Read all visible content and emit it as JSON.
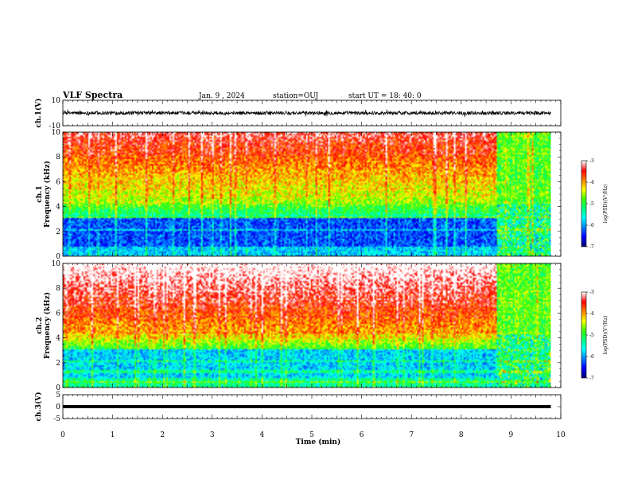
{
  "header": {
    "title": "VLF Spectra",
    "date": "Jan. 9 , 2024",
    "station": "station=OUJ",
    "start": "start UT = 18: 40: 0"
  },
  "colors": {
    "spectrogram_scale": [
      "#00007a",
      "#0000ff",
      "#0080ff",
      "#00ffff",
      "#00ff80",
      "#40ff00",
      "#ffff00",
      "#ff8000",
      "#ff0000",
      "#ffffff"
    ],
    "waveform": "#000000"
  },
  "chart_data": [
    {
      "type": "line",
      "panel": "ch1-waveform",
      "ylabel": "ch.1(V)",
      "ylim": [
        -10,
        10
      ],
      "yticks": [
        "10",
        "-10"
      ],
      "xlim": [
        0,
        10
      ],
      "description_values": {
        "mean_level": 0,
        "noise_amplitude": 2
      }
    },
    {
      "type": "heatmap",
      "panel": "ch1-spectrogram",
      "ylabel": "ch.1\nFrequency (kHz)",
      "ylabel_lines": [
        "ch.1",
        "Frequency (kHz)"
      ],
      "ylim": [
        0,
        10
      ],
      "yticks": [
        "0",
        "2",
        "4",
        "6",
        "8",
        "10"
      ],
      "xlim": [
        0,
        10
      ],
      "colorbar": {
        "label": "log(PSD)(V²/Hz)",
        "ticks": [
          "-3",
          "-4",
          "-5",
          "-6",
          "-7"
        ],
        "range": [
          -7,
          -3
        ]
      },
      "data_end_min": 9.8,
      "change_at_min": 8.7
    },
    {
      "type": "heatmap",
      "panel": "ch2-spectrogram",
      "ylabel_lines": [
        "ch.2",
        "Frequency (kHz)"
      ],
      "ylim": [
        0,
        10
      ],
      "yticks": [
        "0",
        "2",
        "4",
        "6",
        "8",
        "10"
      ],
      "xlim": [
        0,
        10
      ],
      "colorbar": {
        "label": "log(PSD)(V²/Hz)",
        "ticks": [
          "-3",
          "-4",
          "-5",
          "-6",
          "-7"
        ],
        "range": [
          -7,
          -3
        ]
      },
      "data_end_min": 9.8,
      "change_at_min": 8.7
    },
    {
      "type": "line",
      "panel": "ch3-waveform",
      "ylabel": "ch.3(V)",
      "ylim": [
        -5,
        5
      ],
      "yticks": [
        "5",
        "0",
        "-5"
      ],
      "xlim": [
        0,
        10
      ],
      "description_values": {
        "constant_level": 0
      }
    }
  ],
  "xaxis": {
    "label": "Time (min)",
    "ticks": [
      "0",
      "1",
      "2",
      "3",
      "4",
      "5",
      "6",
      "7",
      "8",
      "9",
      "10"
    ]
  }
}
